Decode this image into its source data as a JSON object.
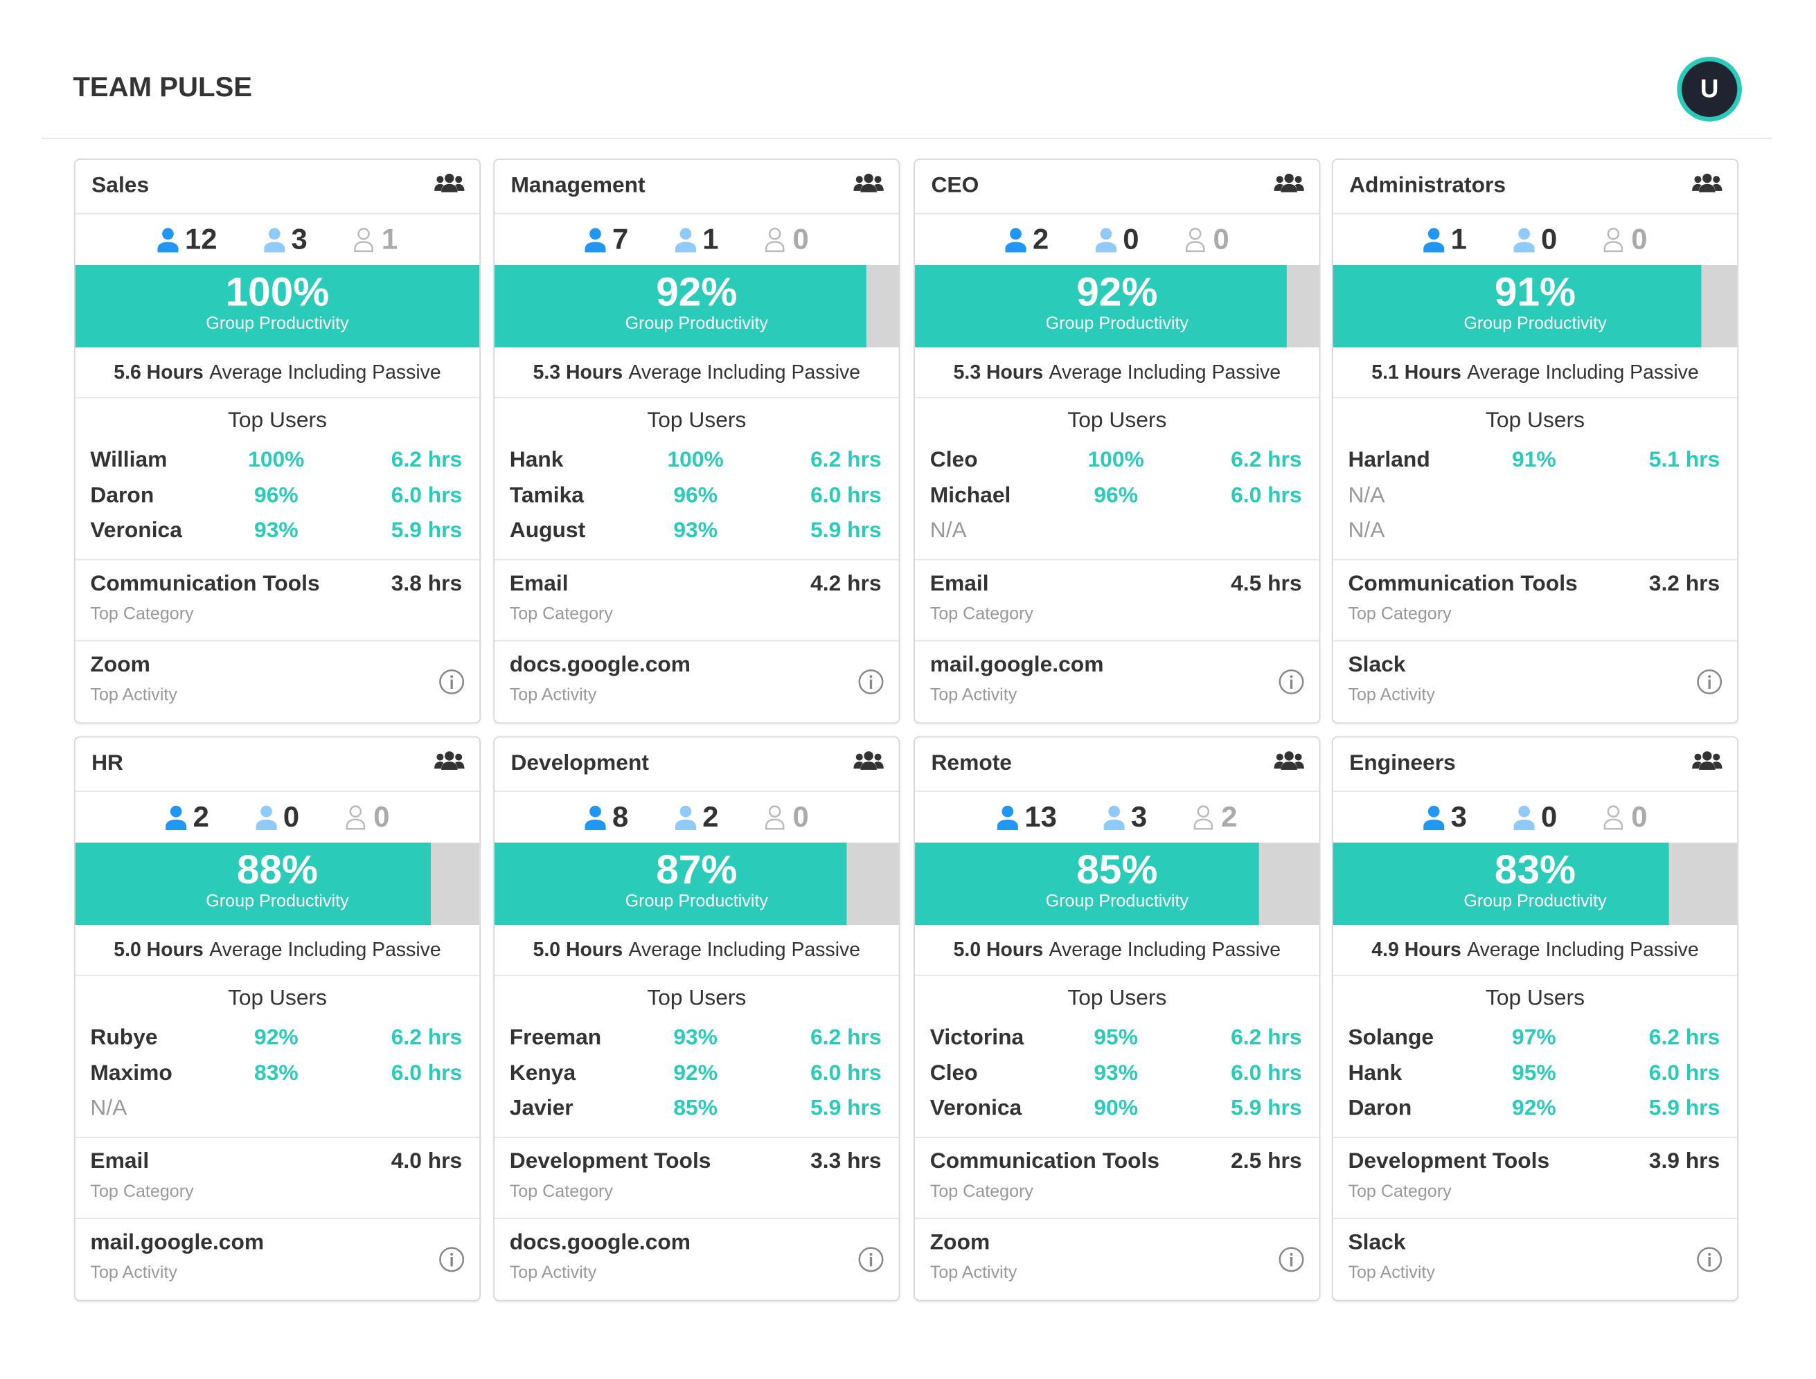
{
  "header": {
    "title": "TEAM PULSE",
    "avatar": "U"
  },
  "labels": {
    "productivity": "Group Productivity",
    "average": "Average Including Passive",
    "top_users": "Top Users",
    "top_category": "Top Category",
    "top_activity": "Top Activity"
  },
  "teams": [
    {
      "name": "Sales",
      "counts": [
        12,
        3,
        1
      ],
      "productivity": {
        "value": 100,
        "label": "100%"
      },
      "hours": "5.6 Hours",
      "users": [
        {
          "name": "William",
          "pct": "100%",
          "hrs": "6.2 hrs"
        },
        {
          "name": "Daron",
          "pct": "96%",
          "hrs": "6.0 hrs"
        },
        {
          "name": "Veronica",
          "pct": "93%",
          "hrs": "5.9 hrs"
        }
      ],
      "category": {
        "name": "Communication Tools",
        "hrs": "3.8 hrs"
      },
      "activity": "Zoom"
    },
    {
      "name": "Management",
      "counts": [
        7,
        1,
        0
      ],
      "productivity": {
        "value": 92,
        "label": "92%"
      },
      "hours": "5.3 Hours",
      "users": [
        {
          "name": "Hank",
          "pct": "100%",
          "hrs": "6.2 hrs"
        },
        {
          "name": "Tamika",
          "pct": "96%",
          "hrs": "6.0 hrs"
        },
        {
          "name": "August",
          "pct": "93%",
          "hrs": "5.9 hrs"
        }
      ],
      "category": {
        "name": "Email",
        "hrs": "4.2 hrs"
      },
      "activity": "docs.google.com"
    },
    {
      "name": "CEO",
      "counts": [
        2,
        0,
        0
      ],
      "productivity": {
        "value": 92,
        "label": "92%"
      },
      "hours": "5.3 Hours",
      "users": [
        {
          "name": "Cleo",
          "pct": "100%",
          "hrs": "6.2 hrs"
        },
        {
          "name": "Michael",
          "pct": "96%",
          "hrs": "6.0 hrs"
        },
        {
          "name": "N/A"
        }
      ],
      "category": {
        "name": "Email",
        "hrs": "4.5 hrs"
      },
      "activity": "mail.google.com"
    },
    {
      "name": "Administrators",
      "counts": [
        1,
        0,
        0
      ],
      "productivity": {
        "value": 91,
        "label": "91%"
      },
      "hours": "5.1 Hours",
      "users": [
        {
          "name": "Harland",
          "pct": "91%",
          "hrs": "5.1 hrs"
        },
        {
          "name": "N/A"
        },
        {
          "name": "N/A"
        }
      ],
      "category": {
        "name": "Communication Tools",
        "hrs": "3.2 hrs"
      },
      "activity": "Slack"
    },
    {
      "name": "HR",
      "counts": [
        2,
        0,
        0
      ],
      "productivity": {
        "value": 88,
        "label": "88%"
      },
      "hours": "5.0 Hours",
      "users": [
        {
          "name": "Rubye",
          "pct": "92%",
          "hrs": "6.2 hrs"
        },
        {
          "name": "Maximo",
          "pct": "83%",
          "hrs": "6.0 hrs"
        },
        {
          "name": "N/A"
        }
      ],
      "category": {
        "name": "Email",
        "hrs": "4.0 hrs"
      },
      "activity": "mail.google.com"
    },
    {
      "name": "Development",
      "counts": [
        8,
        2,
        0
      ],
      "productivity": {
        "value": 87,
        "label": "87%"
      },
      "hours": "5.0 Hours",
      "users": [
        {
          "name": "Freeman",
          "pct": "93%",
          "hrs": "6.2 hrs"
        },
        {
          "name": "Kenya",
          "pct": "92%",
          "hrs": "6.0 hrs"
        },
        {
          "name": "Javier",
          "pct": "85%",
          "hrs": "5.9 hrs"
        }
      ],
      "category": {
        "name": "Development Tools",
        "hrs": "3.3 hrs"
      },
      "activity": "docs.google.com"
    },
    {
      "name": "Remote",
      "counts": [
        13,
        3,
        2
      ],
      "productivity": {
        "value": 85,
        "label": "85%"
      },
      "hours": "5.0 Hours",
      "users": [
        {
          "name": "Victorina",
          "pct": "95%",
          "hrs": "6.2 hrs"
        },
        {
          "name": "Cleo",
          "pct": "93%",
          "hrs": "6.0 hrs"
        },
        {
          "name": "Veronica",
          "pct": "90%",
          "hrs": "5.9 hrs"
        }
      ],
      "category": {
        "name": "Communication Tools",
        "hrs": "2.5 hrs"
      },
      "activity": "Zoom"
    },
    {
      "name": "Engineers",
      "counts": [
        3,
        0,
        0
      ],
      "productivity": {
        "value": 83,
        "label": "83%"
      },
      "hours": "4.9 Hours",
      "users": [
        {
          "name": "Solange",
          "pct": "97%",
          "hrs": "6.2 hrs"
        },
        {
          "name": "Hank",
          "pct": "95%",
          "hrs": "6.0 hrs"
        },
        {
          "name": "Daron",
          "pct": "92%",
          "hrs": "5.9 hrs"
        }
      ],
      "category": {
        "name": "Development Tools",
        "hrs": "3.9 hrs"
      },
      "activity": "Slack"
    }
  ]
}
